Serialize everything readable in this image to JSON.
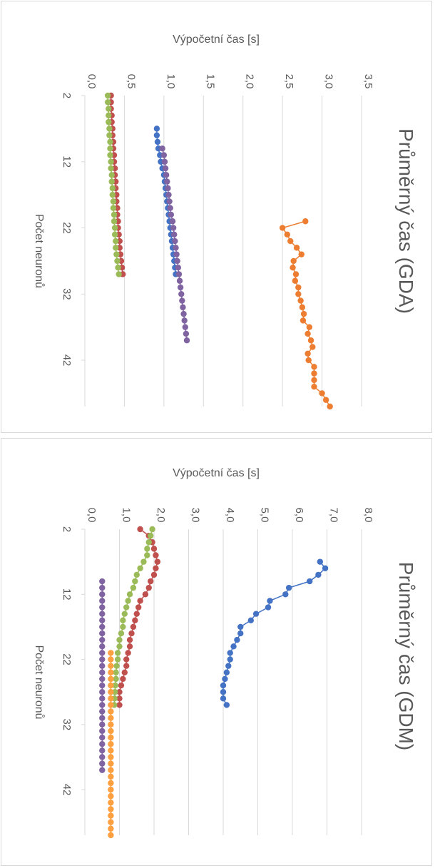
{
  "chart_data": [
    {
      "type": "line",
      "title": "Průměrný čas (GDA)",
      "xlabel": "Počet neuronů",
      "ylabel": "Výpočetní čas [s]",
      "ylim": [
        0,
        3.5
      ],
      "y_ticks": [
        "0,0",
        "0,5",
        "1,0",
        "1,5",
        "2,0",
        "2,5",
        "3,0",
        "3,5"
      ],
      "x_ticks": [
        "2",
        "12",
        "22",
        "32",
        "42"
      ],
      "xlim": [
        2,
        49
      ],
      "grid": true,
      "colors": [
        "#4472c4",
        "#ed7d31",
        "#a5a5a5",
        "#ffc000",
        "#c0504d",
        "#9bbb59",
        "#8064a2"
      ],
      "series": [
        {
          "color": "#4472c4",
          "x": [
            7,
            8,
            9,
            10,
            11,
            12,
            13,
            14,
            15,
            16,
            17,
            18,
            19,
            20,
            21,
            22,
            23,
            24,
            25,
            26,
            27,
            28,
            29
          ],
          "values": [
            0.91,
            0.91,
            0.92,
            0.93,
            0.95,
            0.96,
            0.98,
            1.0,
            1.01,
            1.02,
            1.03,
            1.04,
            1.05,
            1.06,
            1.07,
            1.08,
            1.09,
            1.1,
            1.11,
            1.12,
            1.13,
            1.14,
            1.15
          ]
        },
        {
          "color": "#8064a2",
          "x": [
            10,
            11,
            12,
            13,
            14,
            15,
            16,
            17,
            18,
            19,
            20,
            21,
            22,
            23,
            24,
            25,
            26,
            27,
            28,
            29,
            30,
            31,
            32,
            33,
            34,
            35,
            36,
            37,
            38,
            39
          ],
          "values": [
            0.98,
            1.0,
            1.01,
            1.02,
            1.03,
            1.04,
            1.05,
            1.06,
            1.07,
            1.08,
            1.09,
            1.11,
            1.12,
            1.13,
            1.14,
            1.15,
            1.16,
            1.17,
            1.18,
            1.19,
            1.2,
            1.21,
            1.22,
            1.23,
            1.24,
            1.25,
            1.26,
            1.27,
            1.28,
            1.29
          ]
        },
        {
          "color": "#ed7d31",
          "x": [
            21,
            22,
            23,
            24,
            25,
            26,
            27,
            28,
            29,
            30,
            31,
            32,
            33,
            34,
            35,
            36,
            37,
            38,
            39,
            40,
            41,
            42,
            43,
            44,
            45,
            46,
            47,
            48,
            49
          ],
          "values": [
            2.79,
            2.5,
            2.56,
            2.6,
            2.68,
            2.74,
            2.64,
            2.63,
            2.67,
            2.66,
            2.7,
            2.7,
            2.73,
            2.75,
            2.77,
            2.76,
            2.84,
            2.82,
            2.86,
            2.88,
            2.82,
            2.83,
            2.9,
            2.9,
            2.9,
            2.9,
            3.0,
            3.05,
            3.1
          ]
        },
        {
          "color": "#c0504d",
          "x": [
            2,
            3,
            4,
            5,
            6,
            7,
            8,
            9,
            10,
            11,
            12,
            13,
            14,
            15,
            16,
            17,
            18,
            19,
            20,
            21,
            22,
            23,
            24,
            25,
            26,
            27,
            28,
            29
          ],
          "values": [
            0.33,
            0.33,
            0.33,
            0.34,
            0.34,
            0.35,
            0.35,
            0.36,
            0.36,
            0.37,
            0.37,
            0.38,
            0.38,
            0.39,
            0.39,
            0.4,
            0.4,
            0.41,
            0.41,
            0.42,
            0.42,
            0.43,
            0.44,
            0.44,
            0.45,
            0.46,
            0.47,
            0.48
          ]
        },
        {
          "color": "#9bbb59",
          "x": [
            2,
            3,
            4,
            5,
            6,
            7,
            8,
            9,
            10,
            11,
            12,
            13,
            14,
            15,
            16,
            17,
            18,
            19,
            20,
            21,
            22,
            23,
            24,
            25,
            26,
            27,
            28,
            29
          ],
          "values": [
            0.29,
            0.29,
            0.3,
            0.3,
            0.3,
            0.31,
            0.31,
            0.32,
            0.32,
            0.32,
            0.33,
            0.33,
            0.34,
            0.34,
            0.35,
            0.35,
            0.36,
            0.36,
            0.37,
            0.37,
            0.38,
            0.38,
            0.39,
            0.39,
            0.4,
            0.41,
            0.42,
            0.43
          ]
        }
      ]
    },
    {
      "type": "line",
      "title": "Průměrný čas (GDM)",
      "xlabel": "Počet neuronů",
      "ylabel": "Výpočetní čas [s]",
      "ylim": [
        0,
        8
      ],
      "y_ticks": [
        "0,0",
        "1,0",
        "2,0",
        "3,0",
        "4,0",
        "5,0",
        "6,0",
        "7,0",
        "8,0"
      ],
      "x_ticks": [
        "2",
        "12",
        "22",
        "32",
        "42"
      ],
      "xlim": [
        2,
        49
      ],
      "grid": true,
      "series": [
        {
          "color": "#4472c4",
          "x": [
            7,
            8,
            9,
            10,
            11,
            12,
            13,
            14,
            15,
            16,
            17,
            18,
            19,
            20,
            21,
            22,
            23,
            24,
            25,
            26,
            27,
            28,
            29
          ],
          "values": [
            6.8,
            6.95,
            6.75,
            6.5,
            5.9,
            5.8,
            5.35,
            5.3,
            4.95,
            4.8,
            4.5,
            4.5,
            4.4,
            4.3,
            4.2,
            4.2,
            4.15,
            4.1,
            4.05,
            4.0,
            4.0,
            4.0,
            4.1
          ]
        },
        {
          "color": "#c0504d",
          "x": [
            2,
            3,
            4,
            5,
            6,
            7,
            8,
            9,
            10,
            11,
            12,
            13,
            14,
            15,
            16,
            17,
            18,
            19,
            20,
            21,
            22,
            23,
            24,
            25,
            26,
            27,
            28,
            29
          ],
          "values": [
            1.6,
            1.85,
            1.95,
            2.0,
            2.05,
            2.1,
            2.05,
            2.0,
            1.9,
            1.85,
            1.75,
            1.6,
            1.55,
            1.5,
            1.45,
            1.4,
            1.35,
            1.3,
            1.3,
            1.25,
            1.2,
            1.2,
            1.15,
            1.1,
            1.05,
            1.0,
            1.0,
            1.0
          ]
        },
        {
          "color": "#9bbb59",
          "x": [
            2,
            3,
            4,
            5,
            6,
            7,
            8,
            9,
            10,
            11,
            12,
            13,
            14,
            15,
            16,
            17,
            18,
            19,
            20,
            21,
            22,
            23,
            24,
            25,
            26,
            27,
            28,
            29
          ],
          "values": [
            1.95,
            1.9,
            1.85,
            1.8,
            1.8,
            1.7,
            1.6,
            1.5,
            1.45,
            1.4,
            1.3,
            1.25,
            1.2,
            1.15,
            1.1,
            1.1,
            1.05,
            1.0,
            1.0,
            0.95,
            0.95,
            0.92,
            0.9,
            0.9,
            0.88,
            0.87,
            0.86,
            0.85
          ]
        },
        {
          "color": "#ffa040",
          "x": [
            21,
            22,
            23,
            24,
            25,
            26,
            27,
            28,
            29,
            30,
            31,
            32,
            33,
            34,
            35,
            36,
            37,
            38,
            39,
            40,
            41,
            42,
            43,
            44,
            45,
            46,
            47,
            48,
            49
          ],
          "values": [
            0.75,
            0.75,
            0.75,
            0.75,
            0.75,
            0.75,
            0.75,
            0.75,
            0.75,
            0.75,
            0.75,
            0.75,
            0.75,
            0.75,
            0.75,
            0.75,
            0.75,
            0.75,
            0.75,
            0.75,
            0.75,
            0.75,
            0.75,
            0.75,
            0.75,
            0.75,
            0.75,
            0.75,
            0.75
          ]
        },
        {
          "color": "#8064a2",
          "x": [
            10,
            11,
            12,
            13,
            14,
            15,
            16,
            17,
            18,
            19,
            20,
            21,
            22,
            23,
            24,
            25,
            26,
            27,
            28,
            29,
            30,
            31,
            32,
            33,
            34,
            35,
            36,
            37,
            38,
            39
          ],
          "values": [
            0.5,
            0.5,
            0.5,
            0.5,
            0.5,
            0.5,
            0.5,
            0.5,
            0.5,
            0.5,
            0.5,
            0.5,
            0.5,
            0.5,
            0.5,
            0.5,
            0.5,
            0.5,
            0.5,
            0.5,
            0.5,
            0.5,
            0.5,
            0.5,
            0.5,
            0.5,
            0.5,
            0.5,
            0.5,
            0.5
          ]
        }
      ]
    }
  ]
}
